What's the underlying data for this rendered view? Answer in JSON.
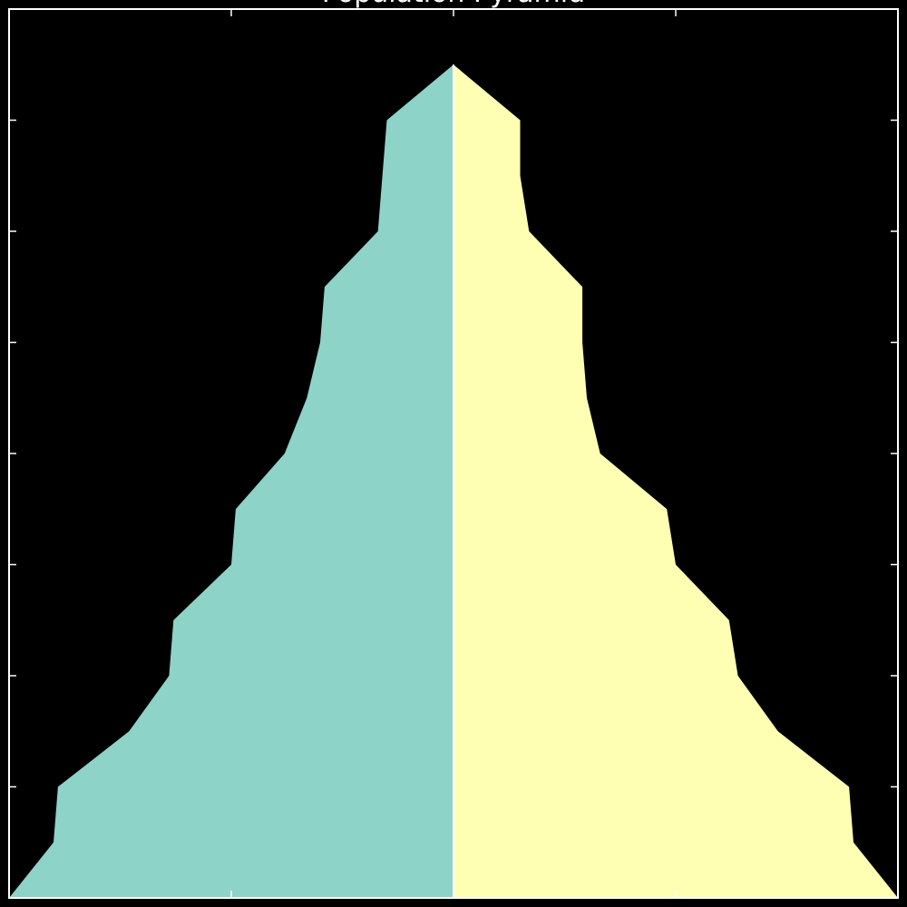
{
  "chart_data": {
    "type": "area",
    "title": "Population Pyramid",
    "xlabel": "",
    "ylabel": "",
    "xlim": [
      -100,
      100
    ],
    "ylim": [
      0,
      16
    ],
    "grid": false,
    "legend": "none",
    "y": [
      0,
      1,
      2,
      3,
      4,
      5,
      6,
      7,
      8,
      9,
      10,
      11,
      12,
      13,
      14,
      15
    ],
    "series": [
      {
        "side": "left",
        "color": "#8dd3c7",
        "values": [
          -100,
          -90,
          -89,
          -73,
          -64,
          -63,
          -50,
          -49,
          -38,
          -33,
          -30,
          -29,
          -17,
          -16,
          -15,
          0
        ]
      },
      {
        "side": "right",
        "color": "#ffffb3",
        "values": [
          100,
          90,
          89,
          73,
          64,
          62,
          50,
          48,
          33,
          30,
          29,
          29,
          17,
          15,
          15,
          0
        ]
      }
    ],
    "axis_color": "#ffffff",
    "spine_color": "#ffffff"
  }
}
